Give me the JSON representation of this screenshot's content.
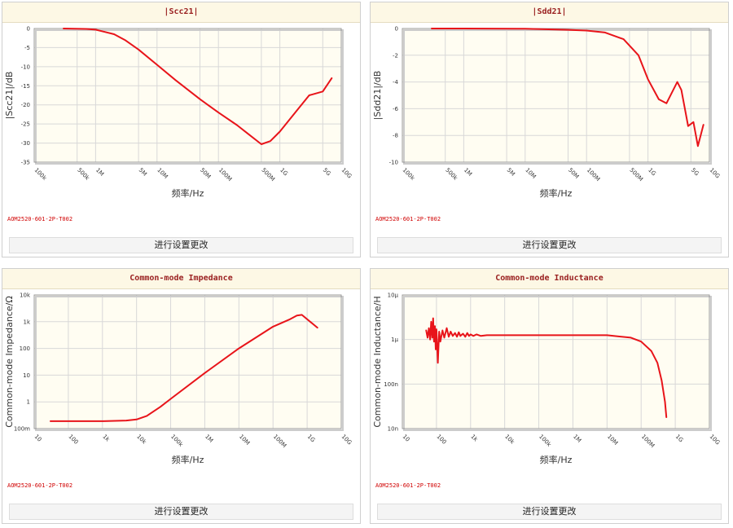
{
  "charts": [
    {
      "title": "|Scc21|",
      "part_no": "AOM2520-601-2P-T002",
      "button_label": "进行设置更改",
      "chart_data": {
        "type": "line",
        "title": "|Scc21|",
        "xlabel": "频率/Hz",
        "ylabel": "|Scc21|/dB",
        "x_scale": "log",
        "xlim": [
          100000,
          10000000000
        ],
        "ylim": [
          -35,
          0
        ],
        "x_ticks": [
          100000,
          500000,
          1000000,
          5000000,
          10000000,
          50000000,
          100000000,
          500000000,
          1000000000,
          5000000000,
          10000000000
        ],
        "x_tick_labels": [
          "100k",
          "500k",
          "1M",
          "5M",
          "10M",
          "50M",
          "100M",
          "500M",
          "1G",
          "5G",
          "10G"
        ],
        "y_ticks": [
          0,
          -5,
          -10,
          -15,
          -20,
          -25,
          -30,
          -35
        ],
        "y_tick_labels": [
          "0",
          "-5",
          "-10",
          "-15",
          "-20",
          "-25",
          "-30",
          "-35"
        ],
        "grid": true,
        "line_color": "#e8141a",
        "series": [
          {
            "x": [
              300000,
              700000,
              1000000,
              2000000,
              3000000,
              5000000,
              10000000,
              20000000,
              50000000,
              100000000,
              200000000,
              300000000,
              500000000,
              700000000,
              1000000000,
              2000000000,
              3000000000,
              5000000000,
              7000000000
            ],
            "y": [
              0,
              -0.1,
              -0.3,
              -1.5,
              -3,
              -5.5,
              -9.5,
              -13.5,
              -18.5,
              -22,
              -25.3,
              -27.5,
              -30.3,
              -29.5,
              -27,
              -21,
              -17.5,
              -16.5,
              -13
            ]
          }
        ]
      }
    },
    {
      "title": "|Sdd21|",
      "part_no": "AOM2520-601-2P-T002",
      "button_label": "进行设置更改",
      "chart_data": {
        "type": "line",
        "title": "|Sdd21|",
        "xlabel": "频率/Hz",
        "ylabel": "|Sdd21|/dB",
        "x_scale": "log",
        "xlim": [
          100000,
          10000000000
        ],
        "ylim": [
          -10,
          0
        ],
        "x_ticks": [
          100000,
          500000,
          1000000,
          5000000,
          10000000,
          50000000,
          100000000,
          500000000,
          1000000000,
          5000000000,
          10000000000
        ],
        "x_tick_labels": [
          "100k",
          "500k",
          "1M",
          "5M",
          "10M",
          "50M",
          "100M",
          "500M",
          "1G",
          "5G",
          "10G"
        ],
        "y_ticks": [
          0,
          -2,
          -4,
          -6,
          -8,
          -10
        ],
        "y_tick_labels": [
          "0",
          "-2",
          "-4",
          "-6",
          "-8",
          "-10"
        ],
        "grid": true,
        "line_color": "#e8141a",
        "series": [
          {
            "x": [
              300000,
              1000000,
              10000000,
              50000000,
              100000000,
              200000000,
              400000000,
              700000000,
              1000000000,
              1500000000,
              2000000000,
              3000000000,
              3500000000,
              4500000000,
              5500000000,
              6500000000,
              8000000000
            ],
            "y": [
              0,
              0,
              -0.02,
              -0.1,
              -0.15,
              -0.3,
              -0.8,
              -2,
              -3.8,
              -5.3,
              -5.6,
              -4,
              -4.6,
              -7.3,
              -7,
              -8.8,
              -7.2
            ]
          }
        ]
      }
    },
    {
      "title": "Common-mode Impedance",
      "part_no": "AOM2520-601-2P-T002",
      "button_label": "进行设置更改",
      "chart_data": {
        "type": "line",
        "title": "Common-mode Impedance",
        "xlabel": "频率/Hz",
        "ylabel": "Common-mode Impedance/Ω",
        "x_scale": "log",
        "y_scale": "log",
        "xlim": [
          10,
          10000000000
        ],
        "ylim": [
          0.1,
          10000
        ],
        "x_ticks": [
          10,
          100,
          1000,
          10000,
          100000,
          1000000,
          10000000,
          100000000,
          1000000000,
          10000000000
        ],
        "x_tick_labels": [
          "10",
          "100",
          "1k",
          "10k",
          "100k",
          "1M",
          "10M",
          "100M",
          "1G",
          "10G"
        ],
        "y_ticks": [
          10000,
          1000,
          100,
          10,
          1,
          0.1
        ],
        "y_tick_labels": [
          "10k",
          "1k",
          "100",
          "10",
          "1",
          "100m"
        ],
        "grid": true,
        "line_color": "#e8141a",
        "series": [
          {
            "x": [
              30,
              100,
              1000,
              5000,
              10000,
              20000,
              50000,
              100000,
              1000000,
              10000000,
              100000000,
              300000000,
              500000000,
              700000000,
              2000000000
            ],
            "y": [
              0.19,
              0.19,
              0.19,
              0.2,
              0.22,
              0.3,
              0.65,
              1.3,
              12,
              100,
              650,
              1200,
              1700,
              1800,
              600
            ]
          }
        ]
      }
    },
    {
      "title": "Common-mode Inductance",
      "part_no": "AOM2520-601-2P-T002",
      "button_label": "进行设置更改",
      "chart_data": {
        "type": "line",
        "title": "Common-mode Inductance",
        "xlabel": "频率/Hz",
        "ylabel": "Common-mode Inductance/H",
        "x_scale": "log",
        "y_scale": "log",
        "xlim": [
          10,
          10000000000
        ],
        "ylim": [
          1e-08,
          1e-05
        ],
        "x_ticks": [
          10,
          100,
          1000,
          10000,
          100000,
          1000000,
          10000000,
          100000000,
          1000000000,
          10000000000
        ],
        "x_tick_labels": [
          "10",
          "100",
          "1k",
          "10k",
          "100k",
          "1M",
          "10M",
          "100M",
          "1G",
          "10G"
        ],
        "y_ticks": [
          1e-05,
          1e-06,
          1e-07,
          1e-08
        ],
        "y_tick_labels": [
          "10μ",
          "1μ",
          "100n",
          "10n"
        ],
        "grid": true,
        "line_color": "#e8141a",
        "series": [
          {
            "x": [
              50,
              55,
              60,
              65,
              70,
              75,
              80,
              85,
              90,
              95,
              100,
              110,
              120,
              130,
              150,
              170,
              200,
              230,
              260,
              300,
              350,
              400,
              450,
              500,
              600,
              700,
              800,
              900,
              1000,
              1200,
              1500,
              2000,
              3000,
              5000,
              10000,
              100000,
              1000000,
              10000000,
              50000000,
              100000000,
              200000000,
              300000000,
              400000000,
              500000000,
              550000000
            ],
            "y": [
              1.6e-06,
              1.1e-06,
              1.8e-06,
              1e-06,
              2.5e-06,
              1.1e-06,
              3e-06,
              9e-07,
              2e-06,
              6e-07,
              1.7e-06,
              3e-07,
              1.5e-06,
              9e-07,
              1.6e-06,
              1.1e-06,
              1.8e-06,
              1.15e-06,
              1.5e-06,
              1.2e-06,
              1.4e-06,
              1.15e-06,
              1.45e-06,
              1.2e-06,
              1.35e-06,
              1.15e-06,
              1.4e-06,
              1.2e-06,
              1.3e-06,
              1.2e-06,
              1.3e-06,
              1.2e-06,
              1.25e-06,
              1.25e-06,
              1.25e-06,
              1.25e-06,
              1.25e-06,
              1.25e-06,
              1.1e-06,
              9e-07,
              5.5e-07,
              3e-07,
              1.2e-07,
              4e-08,
              1.8e-08
            ]
          }
        ]
      }
    }
  ]
}
